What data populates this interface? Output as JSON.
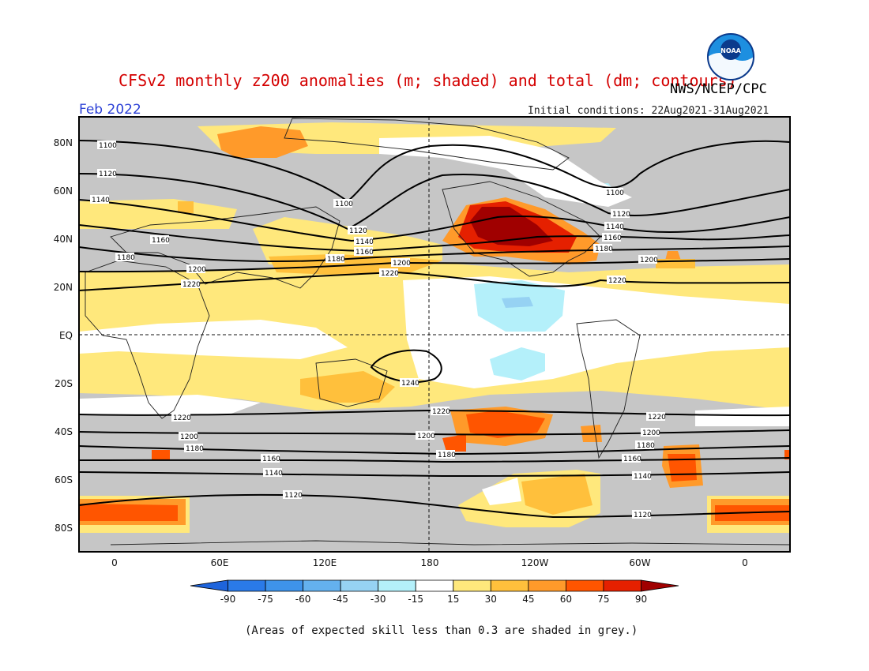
{
  "header": {
    "title": "CFSv2 monthly z200 anomalies (m; shaded) and total (dm; contours)",
    "agency": "NWS/NCEP/CPC",
    "month": "Feb 2022",
    "initial_conditions": "Initial conditions: 22Aug2021-31Aug2021",
    "logo_text": "NOAA"
  },
  "map": {
    "lat_labels": [
      "80N",
      "60N",
      "40N",
      "20N",
      "EQ",
      "20S",
      "40S",
      "60S",
      "80S"
    ],
    "lon_labels": [
      "0",
      "60E",
      "120E",
      "180",
      "120W",
      "60W",
      "0"
    ],
    "contour_labels": [
      "1100",
      "1120",
      "1140",
      "1160",
      "1180",
      "1200",
      "1220",
      "1240"
    ],
    "grey_meaning": "low skill"
  },
  "colorbar": {
    "ticks": [
      "-90",
      "-75",
      "-60",
      "-45",
      "-30",
      "-15",
      "15",
      "30",
      "45",
      "60",
      "75",
      "90"
    ],
    "colors": [
      "#1e64dc",
      "#2a7ae8",
      "#3e93ea",
      "#64b1ee",
      "#96d2f3",
      "#b4f0fa",
      "#ffffff",
      "#ffe87c",
      "#ffc03c",
      "#ff9a2a",
      "#ff5500",
      "#e52000",
      "#a00000"
    ]
  },
  "footnote": "(Areas of expected skill less than 0.3 are shaded in grey.)"
}
